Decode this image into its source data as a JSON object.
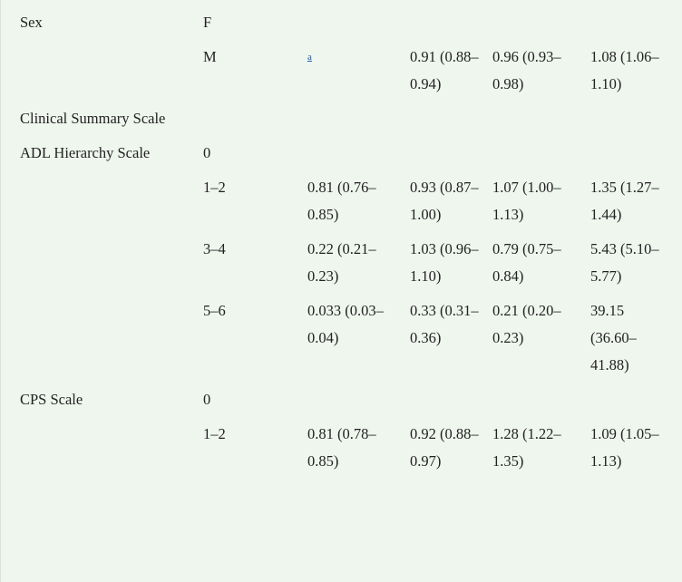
{
  "table": {
    "rows": [
      [
        "Sex",
        "F",
        null,
        null,
        null,
        null
      ],
      [
        null,
        "M",
        "a",
        "0.91 (0.88–0.94)",
        "0.96 (0.93–0.98)",
        "1.08 (1.06–1.10)"
      ],
      [
        "Clinical Summary Scale",
        null,
        null,
        null,
        null,
        null
      ],
      [
        "ADL Hierarchy Scale",
        "0",
        null,
        null,
        null,
        null
      ],
      [
        null,
        "1–2",
        "0.81 (0.76–0.85)",
        "0.93 (0.87–1.00)",
        "1.07 (1.00–1.13)",
        "1.35 (1.27–1.44)"
      ],
      [
        null,
        "3–4",
        "0.22 (0.21–0.23)",
        "1.03 (0.96–1.10)",
        "0.79 (0.75–0.84)",
        "5.43 (5.10–5.77)"
      ],
      [
        null,
        "5–6",
        "0.033 (0.03–0.04)",
        "0.33 (0.31–0.36)",
        "0.21 (0.20–0.23)",
        "39.15 (36.60–41.88)"
      ],
      [
        "CPS Scale",
        "0",
        null,
        null,
        null,
        null
      ],
      [
        null,
        "1–2",
        "0.81 (0.78–0.85)",
        "0.92 (0.88–0.97)",
        "1.28 (1.22–1.35)",
        "1.09 (1.05–1.13)"
      ]
    ]
  }
}
